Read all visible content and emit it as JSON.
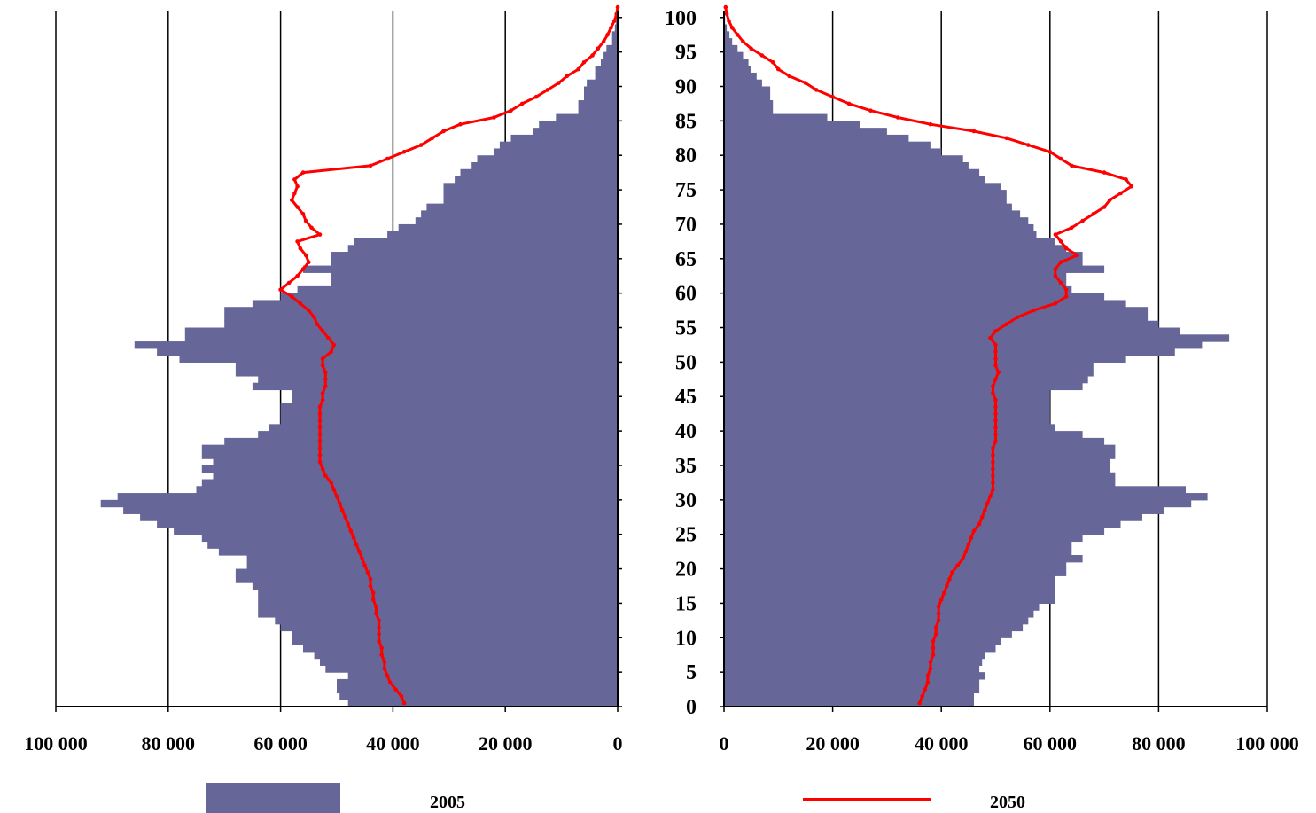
{
  "chart_data": {
    "type": "population-pyramid",
    "colors": {
      "bars": "#666699",
      "line": "#ff0000",
      "axis": "#000000"
    },
    "age_ticks": [
      "0",
      "5",
      "10",
      "15",
      "20",
      "25",
      "30",
      "35",
      "40",
      "45",
      "50",
      "55",
      "60",
      "65",
      "70",
      "75",
      "80",
      "85",
      "90",
      "95",
      "100"
    ],
    "legend": {
      "bars_label": "2005",
      "line_label": "2050"
    },
    "age_range": [
      0,
      101
    ],
    "panels": [
      {
        "side": "left",
        "xlim": [
          100000,
          0
        ],
        "x_ticks": [
          "100 000",
          "80 000",
          "60 000",
          "40 000",
          "20 000",
          "0"
        ],
        "x_tick_values": [
          100000,
          80000,
          60000,
          40000,
          20000,
          0
        ],
        "bars_2005_by_age": [
          48000,
          49500,
          50000,
          50000,
          48000,
          52000,
          53000,
          54000,
          56000,
          58000,
          58000,
          60000,
          61000,
          64000,
          64000,
          64000,
          64000,
          65000,
          68000,
          68000,
          66000,
          66000,
          71000,
          73000,
          74000,
          79000,
          82000,
          85000,
          88000,
          92000,
          89000,
          75000,
          74000,
          72000,
          74000,
          72000,
          74000,
          74000,
          70000,
          64000,
          62000,
          60000,
          60000,
          60000,
          58000,
          58000,
          65000,
          64000,
          68000,
          68000,
          78000,
          82000,
          86000,
          77000,
          77000,
          70000,
          70000,
          70000,
          65000,
          60000,
          57000,
          51000,
          51000,
          56000,
          51000,
          51000,
          48000,
          47000,
          41000,
          39000,
          36000,
          35000,
          34000,
          31000,
          31000,
          31000,
          29000,
          28000,
          26000,
          25000,
          22000,
          21000,
          19000,
          15000,
          14000,
          11000,
          7000,
          7000,
          6000,
          6000,
          5500,
          4000,
          4000,
          3000,
          2500,
          2000,
          1000,
          1000,
          500,
          300,
          100,
          0
        ],
        "line_2050_by_age": [
          38000,
          38500,
          39500,
          40500,
          41000,
          41500,
          41500,
          42000,
          42000,
          42500,
          42500,
          42500,
          42500,
          43000,
          43000,
          43500,
          43500,
          44000,
          44000,
          44500,
          45000,
          45500,
          46000,
          46500,
          47000,
          47500,
          48000,
          48500,
          49000,
          49500,
          50000,
          50500,
          51000,
          52000,
          52500,
          53000,
          53000,
          53000,
          53000,
          53000,
          53000,
          53000,
          53000,
          53000,
          52500,
          52500,
          52000,
          52000,
          52000,
          52500,
          52500,
          51000,
          50500,
          51500,
          52500,
          53500,
          54000,
          55000,
          56500,
          58000,
          60000,
          58500,
          57000,
          56000,
          55000,
          55500,
          56500,
          57000,
          53000,
          54500,
          55500,
          56000,
          57000,
          58000,
          57500,
          57000,
          57500,
          56000,
          44000,
          41000,
          38000,
          35000,
          33000,
          31000,
          28000,
          22000,
          19000,
          17000,
          14500,
          12500,
          10500,
          9000,
          7000,
          6000,
          4500,
          3500,
          2500,
          1800,
          1200,
          600,
          200,
          0
        ]
      },
      {
        "side": "right",
        "xlim": [
          0,
          100000
        ],
        "x_ticks": [
          "0",
          "20 000",
          "40 000",
          "60 000",
          "80 000",
          "100 000"
        ],
        "x_tick_values": [
          0,
          20000,
          40000,
          60000,
          80000,
          100000
        ],
        "bars_2005_by_age": [
          46000,
          46000,
          47000,
          47000,
          48000,
          47000,
          47500,
          48000,
          50000,
          51000,
          53000,
          55000,
          56000,
          57000,
          58000,
          61000,
          61000,
          61000,
          61000,
          63000,
          63000,
          66000,
          64000,
          64000,
          66000,
          70000,
          73000,
          77000,
          81000,
          86000,
          89000,
          85000,
          72000,
          72000,
          71000,
          71000,
          72000,
          72000,
          70000,
          66000,
          61000,
          60000,
          60000,
          60000,
          60000,
          60000,
          66000,
          67000,
          68000,
          68000,
          74000,
          83000,
          88000,
          93000,
          84000,
          80000,
          78000,
          78000,
          74000,
          70000,
          64000,
          63000,
          63000,
          70000,
          66000,
          66000,
          63000,
          61000,
          57500,
          57000,
          56000,
          54500,
          53000,
          52000,
          52000,
          51000,
          48000,
          47000,
          45000,
          44000,
          40000,
          38000,
          34000,
          30000,
          25000,
          19000,
          9000,
          9000,
          8500,
          8500,
          7000,
          6000,
          5000,
          4500,
          3500,
          2500,
          1500,
          1000,
          500,
          200,
          100,
          0
        ],
        "line_2050_by_age": [
          36000,
          36500,
          37000,
          37500,
          37500,
          38000,
          38000,
          38500,
          38500,
          38500,
          39000,
          39000,
          39500,
          39500,
          39500,
          40000,
          40500,
          41000,
          41500,
          42000,
          43000,
          44000,
          44500,
          45000,
          45500,
          46000,
          47000,
          47500,
          48000,
          48500,
          49000,
          49500,
          49500,
          49500,
          49500,
          49500,
          49500,
          49500,
          50000,
          50000,
          50000,
          50000,
          50000,
          50000,
          50000,
          49500,
          49500,
          50000,
          50500,
          50000,
          50000,
          50000,
          50000,
          49000,
          50000,
          52000,
          54000,
          57000,
          61000,
          63000,
          63000,
          62000,
          61000,
          61000,
          62000,
          65000,
          63000,
          62000,
          61000,
          64000,
          66000,
          68000,
          70000,
          71000,
          73000,
          75000,
          74000,
          70000,
          64000,
          62000,
          60000,
          56000,
          52000,
          46000,
          38000,
          32000,
          27000,
          23000,
          20000,
          17000,
          15000,
          12000,
          10000,
          9000,
          7000,
          5000,
          3500,
          2500,
          1500,
          900,
          500,
          300
        ]
      }
    ]
  }
}
